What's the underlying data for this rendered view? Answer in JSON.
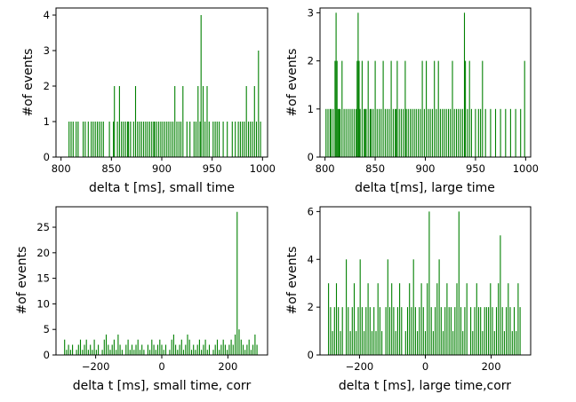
{
  "chart_data": [
    {
      "type": "histogram",
      "xlabel": "delta t [ms], small time",
      "ylabel": "#of events",
      "xlim": [
        795,
        1005
      ],
      "ylim": [
        0,
        4.2
      ],
      "xticks": [
        800,
        850,
        900,
        950,
        1000
      ],
      "yticks": [
        0,
        1,
        2,
        3,
        4
      ],
      "color": "#008000",
      "x": [
        808,
        810,
        812,
        815,
        817,
        822,
        824,
        827,
        830,
        832,
        834,
        836,
        838,
        840,
        842,
        848,
        852,
        853,
        856,
        858,
        860,
        862,
        864,
        866,
        867,
        869,
        872,
        874,
        876,
        878,
        880,
        882,
        884,
        886,
        888,
        890,
        892,
        893,
        895,
        897,
        899,
        901,
        903,
        905,
        907,
        909,
        911,
        913,
        915,
        917,
        919,
        921,
        925,
        928,
        932,
        934,
        936,
        938,
        939,
        941,
        943,
        945,
        947,
        951,
        953,
        955,
        957,
        961,
        965,
        970,
        973,
        976,
        978,
        980,
        982,
        984,
        986,
        988,
        990,
        992,
        994,
        996,
        998
      ],
      "counts": [
        1,
        1,
        1,
        1,
        1,
        1,
        1,
        1,
        1,
        1,
        1,
        1,
        1,
        1,
        1,
        1,
        1,
        2,
        1,
        2,
        1,
        1,
        1,
        1,
        1,
        1,
        1,
        2,
        1,
        1,
        1,
        1,
        1,
        1,
        1,
        1,
        1,
        1,
        1,
        1,
        1,
        1,
        1,
        1,
        1,
        1,
        1,
        2,
        1,
        1,
        1,
        2,
        1,
        1,
        1,
        1,
        2,
        1,
        4,
        2,
        1,
        2,
        1,
        1,
        1,
        1,
        1,
        1,
        1,
        1,
        1,
        1,
        1,
        1,
        1,
        2,
        1,
        1,
        1,
        2,
        1,
        3,
        1
      ]
    },
    {
      "type": "histogram",
      "xlabel": "delta t[ms], large time",
      "ylabel": "#of events",
      "xlim": [
        795,
        1005
      ],
      "ylim": [
        0,
        3.1
      ],
      "xticks": [
        800,
        850,
        900,
        950,
        1000
      ],
      "yticks": [
        0,
        1,
        2,
        3
      ],
      "color": "#008000",
      "x": [
        801,
        803,
        805,
        806,
        808,
        810,
        811,
        812,
        813,
        814,
        815,
        817,
        819,
        821,
        823,
        825,
        827,
        829,
        831,
        832,
        833,
        834,
        835,
        837,
        839,
        840,
        841,
        843,
        845,
        846,
        848,
        850,
        852,
        854,
        856,
        858,
        860,
        862,
        864,
        866,
        868,
        870,
        871,
        872,
        874,
        876,
        878,
        880,
        881,
        883,
        885,
        887,
        889,
        891,
        893,
        895,
        897,
        899,
        901,
        903,
        905,
        907,
        909,
        911,
        913,
        915,
        917,
        919,
        921,
        923,
        925,
        927,
        929,
        931,
        933,
        935,
        937,
        939,
        940,
        942,
        944,
        946,
        950,
        953,
        955,
        957,
        960,
        965,
        970,
        975,
        980,
        985,
        990,
        995,
        999
      ],
      "counts": [
        1,
        1,
        1,
        1,
        1,
        2,
        3,
        2,
        1,
        1,
        1,
        2,
        1,
        1,
        1,
        1,
        1,
        1,
        1,
        2,
        3,
        2,
        1,
        2,
        1,
        1,
        1,
        2,
        1,
        1,
        1,
        2,
        1,
        1,
        1,
        2,
        1,
        1,
        1,
        2,
        1,
        1,
        1,
        2,
        1,
        1,
        1,
        2,
        1,
        1,
        1,
        1,
        1,
        1,
        1,
        1,
        2,
        1,
        2,
        1,
        1,
        1,
        2,
        1,
        2,
        1,
        1,
        1,
        1,
        1,
        1,
        2,
        1,
        1,
        1,
        1,
        1,
        3,
        2,
        1,
        2,
        1,
        1,
        1,
        1,
        2,
        1,
        1,
        1,
        1,
        1,
        1,
        1,
        1,
        2
      ]
    },
    {
      "type": "histogram",
      "xlabel": "delta t [ms], small time, corr",
      "ylabel": "#of events",
      "xlim": [
        -320,
        320
      ],
      "ylim": [
        0,
        29
      ],
      "xticks": [
        -200,
        0,
        200
      ],
      "yticks": [
        0,
        5,
        10,
        15,
        20,
        25
      ],
      "color": "#008000",
      "x": [
        -294,
        -288,
        -282,
        -276,
        -270,
        -264,
        -258,
        -252,
        -246,
        -240,
        -234,
        -228,
        -222,
        -216,
        -210,
        -204,
        -198,
        -192,
        -186,
        -180,
        -174,
        -168,
        -162,
        -156,
        -150,
        -144,
        -138,
        -132,
        -126,
        -120,
        -114,
        -108,
        -102,
        -96,
        -90,
        -84,
        -78,
        -72,
        -66,
        -60,
        -54,
        -48,
        -42,
        -36,
        -30,
        -24,
        -18,
        -12,
        -6,
        0,
        6,
        12,
        18,
        24,
        30,
        36,
        42,
        48,
        54,
        60,
        66,
        72,
        78,
        84,
        90,
        96,
        102,
        108,
        114,
        120,
        126,
        132,
        138,
        144,
        150,
        156,
        162,
        168,
        174,
        180,
        186,
        192,
        198,
        204,
        210,
        216,
        222,
        228,
        234,
        240,
        246,
        252,
        258,
        264,
        270,
        276,
        282,
        288
      ],
      "counts": [
        3,
        1,
        2,
        1,
        2,
        0,
        1,
        2,
        3,
        1,
        2,
        3,
        1,
        2,
        1,
        3,
        1,
        2,
        0,
        1,
        3,
        4,
        2,
        1,
        2,
        3,
        1,
        4,
        2,
        1,
        0,
        2,
        3,
        1,
        2,
        1,
        2,
        3,
        1,
        2,
        1,
        0,
        2,
        1,
        3,
        2,
        1,
        2,
        3,
        2,
        1,
        2,
        0,
        1,
        3,
        4,
        2,
        1,
        2,
        3,
        1,
        2,
        4,
        3,
        1,
        2,
        1,
        2,
        3,
        1,
        2,
        3,
        1,
        2,
        0,
        1,
        2,
        3,
        1,
        2,
        3,
        2,
        1,
        2,
        3,
        2,
        4,
        28,
        5,
        3,
        2,
        1,
        2,
        3,
        1,
        2,
        4,
        2
      ]
    },
    {
      "type": "histogram",
      "xlabel": "delta t [ms], large time,corr",
      "ylabel": "#of events",
      "xlim": [
        -320,
        320
      ],
      "ylim": [
        0,
        6.2
      ],
      "xticks": [
        -200,
        0,
        200
      ],
      "yticks": [
        0,
        2,
        4,
        6
      ],
      "color": "#008000",
      "x": [
        -294,
        -288,
        -282,
        -276,
        -270,
        -264,
        -258,
        -252,
        -246,
        -240,
        -234,
        -228,
        -222,
        -216,
        -210,
        -204,
        -198,
        -192,
        -186,
        -180,
        -174,
        -168,
        -162,
        -156,
        -150,
        -144,
        -138,
        -132,
        -126,
        -120,
        -114,
        -108,
        -102,
        -96,
        -90,
        -84,
        -78,
        -72,
        -66,
        -60,
        -54,
        -48,
        -42,
        -36,
        -30,
        -24,
        -18,
        -12,
        -6,
        0,
        6,
        12,
        18,
        24,
        30,
        36,
        42,
        48,
        54,
        60,
        66,
        72,
        78,
        84,
        90,
        96,
        102,
        108,
        114,
        120,
        126,
        132,
        138,
        144,
        150,
        156,
        162,
        168,
        174,
        180,
        186,
        192,
        198,
        204,
        210,
        216,
        222,
        228,
        234,
        240,
        246,
        252,
        258,
        264,
        270,
        276,
        282,
        288
      ],
      "counts": [
        3,
        2,
        1,
        2,
        3,
        2,
        1,
        2,
        0,
        4,
        2,
        1,
        2,
        3,
        1,
        2,
        4,
        2,
        1,
        2,
        3,
        2,
        1,
        2,
        1,
        3,
        2,
        1,
        0,
        2,
        4,
        2,
        3,
        2,
        1,
        2,
        3,
        2,
        0,
        1,
        2,
        3,
        2,
        4,
        2,
        1,
        2,
        3,
        2,
        1,
        3,
        6,
        2,
        1,
        2,
        3,
        4,
        2,
        1,
        2,
        3,
        2,
        2,
        1,
        2,
        3,
        6,
        2,
        1,
        2,
        3,
        0,
        2,
        1,
        2,
        3,
        2,
        2,
        1,
        2,
        2,
        2,
        3,
        2,
        1,
        2,
        3,
        5,
        2,
        1,
        2,
        3,
        2,
        1,
        2,
        1,
        3,
        2
      ]
    }
  ]
}
